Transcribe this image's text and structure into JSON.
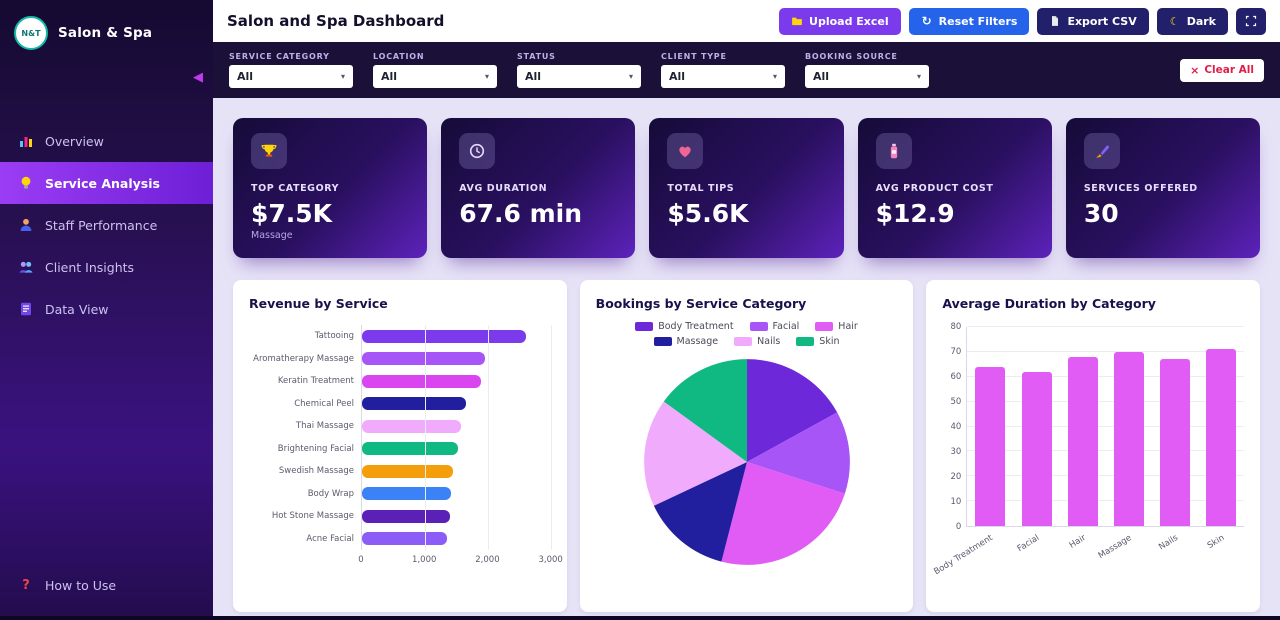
{
  "theme": {
    "accent_purple": "#7c3aed",
    "accent_blue": "#2563eb",
    "dark_navy": "#23206b",
    "danger_red": "#e11d48",
    "content_bg": "#e7e3f7",
    "filterbar_bg": "#1a1038"
  },
  "sidebar": {
    "logo_text": "N&T",
    "title": "Salon & Spa",
    "items": [
      {
        "label": "Overview",
        "icon": "bar-chart",
        "active": false
      },
      {
        "label": "Service Analysis",
        "icon": "lightbulb",
        "active": true
      },
      {
        "label": "Staff Performance",
        "icon": "person",
        "active": false
      },
      {
        "label": "Client Insights",
        "icon": "people",
        "active": false
      },
      {
        "label": "Data View",
        "icon": "notebook",
        "active": false
      }
    ],
    "footer_item": {
      "label": "How to Use",
      "icon": "question"
    }
  },
  "header": {
    "title": "Salon and Spa Dashboard",
    "buttons": [
      {
        "name": "upload-excel-button",
        "label": "Upload Excel",
        "icon": "folder",
        "bg": "#7c3aed"
      },
      {
        "name": "reset-filters-button",
        "label": "Reset Filters",
        "icon": "reset",
        "bg": "#2563eb"
      },
      {
        "name": "export-csv-button",
        "label": "Export CSV",
        "icon": "file",
        "bg": "#23206b"
      },
      {
        "name": "dark-mode-toggle",
        "label": "Dark",
        "icon": "moon",
        "bg": "#23206b"
      },
      {
        "name": "fullscreen-button",
        "label": "",
        "icon": "expand",
        "bg": "#23206b"
      }
    ]
  },
  "filters": {
    "clear_all_label": "Clear All",
    "fields": [
      {
        "label": "SERVICE CATEGORY",
        "value": "All"
      },
      {
        "label": "LOCATION",
        "value": "All"
      },
      {
        "label": "STATUS",
        "value": "All"
      },
      {
        "label": "CLIENT TYPE",
        "value": "All"
      },
      {
        "label": "BOOKING SOURCE",
        "value": "All"
      }
    ]
  },
  "kpis": [
    {
      "icon": "trophy",
      "label": "TOP CATEGORY",
      "value": "$7.5K",
      "sub": "Massage"
    },
    {
      "icon": "clock",
      "label": "AVG DURATION",
      "value": "67.6 min",
      "sub": ""
    },
    {
      "icon": "heart",
      "label": "TOTAL TIPS",
      "value": "$5.6K",
      "sub": ""
    },
    {
      "icon": "lotion-bottle",
      "label": "AVG PRODUCT COST",
      "value": "$12.9",
      "sub": ""
    },
    {
      "icon": "paint-brush",
      "label": "SERVICES OFFERED",
      "value": "30",
      "sub": ""
    }
  ],
  "chart_data": [
    {
      "type": "bar",
      "orientation": "horizontal",
      "title": "Revenue by Service",
      "categories": [
        "Tattooing",
        "Aromatherapy Massage",
        "Keratin Treatment",
        "Chemical Peel",
        "Thai Massage",
        "Brightening Facial",
        "Swedish Massage",
        "Body Wrap",
        "Hot Stone Massage",
        "Acne Facial"
      ],
      "values": [
        2600,
        1950,
        1900,
        1650,
        1580,
        1520,
        1450,
        1420,
        1400,
        1350
      ],
      "colors": [
        "#7c3aed",
        "#a855f7",
        "#d946ef",
        "#221f9e",
        "#f0abfc",
        "#10b981",
        "#f59e0b",
        "#3b82f6",
        "#5b21b6",
        "#8b5cf6"
      ],
      "xlim": [
        0,
        3000
      ],
      "xticks": [
        0,
        1000,
        2000,
        3000
      ],
      "xtick_labels": [
        "0",
        "1,000",
        "2,000",
        "3,000"
      ],
      "grid": true
    },
    {
      "type": "pie",
      "title": "Bookings by Service Category",
      "categories": [
        "Body Treatment",
        "Facial",
        "Hair",
        "Massage",
        "Nails",
        "Skin"
      ],
      "values": [
        17,
        13,
        24,
        14,
        17,
        15
      ],
      "values_unit": "approx percent share",
      "colors": [
        "#6d28d9",
        "#a855f7",
        "#e05cf5",
        "#221f9e",
        "#f0abfc",
        "#10b981"
      ],
      "legend_position": "top"
    },
    {
      "type": "bar",
      "orientation": "vertical",
      "title": "Average Duration by Category",
      "categories": [
        "Body Treatment",
        "Facial",
        "Hair",
        "Massage",
        "Nails",
        "Skin"
      ],
      "values": [
        64,
        62,
        68,
        70,
        67,
        71
      ],
      "bar_color": "#e05cf5",
      "ylim": [
        0,
        80
      ],
      "yticks": [
        0,
        10,
        20,
        30,
        40,
        50,
        60,
        70,
        80
      ],
      "grid": true
    }
  ]
}
